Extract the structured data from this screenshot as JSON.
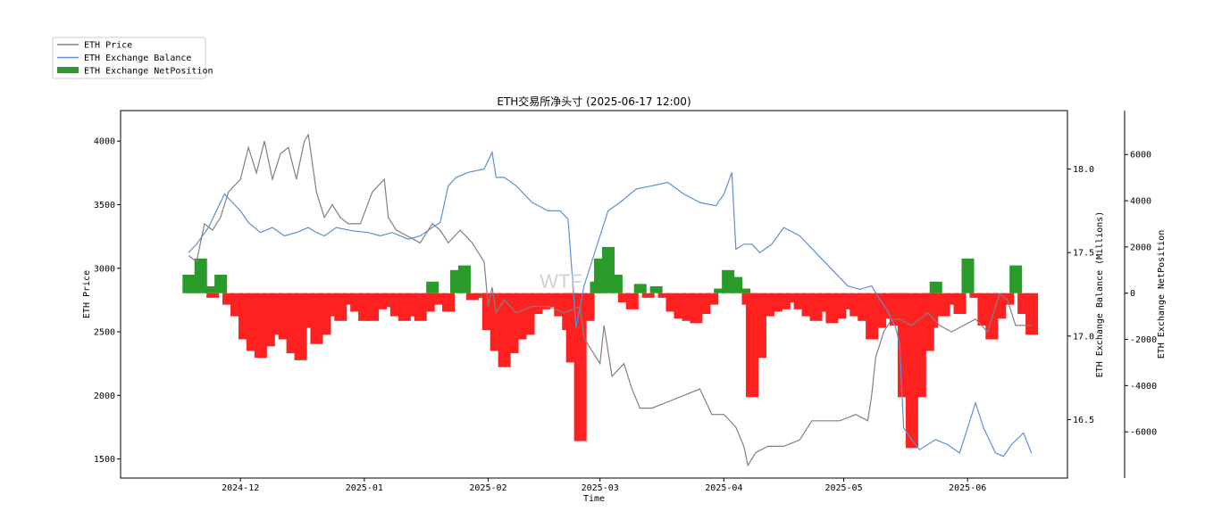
{
  "chart_data": {
    "type": "line",
    "title": "ETH交易所净头寸 (2025-06-17 12:00)",
    "xlabel": "Time",
    "watermark": "WTF",
    "x_ticks": [
      "2024-12",
      "2025-01",
      "2025-02",
      "2025-03",
      "2025-04",
      "2025-05",
      "2025-06"
    ],
    "axes": {
      "price": {
        "label": "ETH Price",
        "ylim": [
          1350,
          4240
        ],
        "ticks": [
          1500,
          2000,
          2500,
          3000,
          3500,
          4000
        ]
      },
      "balance": {
        "label": "ETH Exchange Balance (Millions)",
        "ylim": [
          16.15,
          18.35
        ],
        "ticks": [
          "16.5",
          "17.0",
          "17.5",
          "18.0"
        ]
      },
      "netposition": {
        "label": "ETH Exchange NetPosition",
        "ylim": [
          -8000,
          7900
        ],
        "ticks": [
          -6000,
          -4000,
          -2000,
          0,
          2000,
          4000,
          6000
        ]
      }
    },
    "legend": {
      "placement": "upper-left, outside plot"
    },
    "series": [
      {
        "name": "ETH Price",
        "axis": "price",
        "color": "#808080",
        "x": [
          "2024-11-18",
          "2024-11-20",
          "2024-11-22",
          "2024-11-24",
          "2024-11-26",
          "2024-11-28",
          "2024-12-01",
          "2024-12-03",
          "2024-12-05",
          "2024-12-07",
          "2024-12-09",
          "2024-12-11",
          "2024-12-13",
          "2024-12-15",
          "2024-12-17",
          "2024-12-18",
          "2024-12-20",
          "2024-12-22",
          "2024-12-24",
          "2024-12-26",
          "2024-12-28",
          "2024-12-31",
          "2025-01-03",
          "2025-01-06",
          "2025-01-07",
          "2025-01-09",
          "2025-01-12",
          "2025-01-15",
          "2025-01-18",
          "2025-01-20",
          "2025-01-22",
          "2025-01-25",
          "2025-01-28",
          "2025-01-31",
          "2025-02-01",
          "2025-02-02",
          "2025-02-03",
          "2025-02-05",
          "2025-02-08",
          "2025-02-12",
          "2025-02-16",
          "2025-02-20",
          "2025-02-24",
          "2025-02-25",
          "2025-02-27",
          "2025-03-01",
          "2025-03-02",
          "2025-03-04",
          "2025-03-07",
          "2025-03-09",
          "2025-03-11",
          "2025-03-14",
          "2025-03-18",
          "2025-03-22",
          "2025-03-26",
          "2025-03-29",
          "2025-04-01",
          "2025-04-04",
          "2025-04-06",
          "2025-04-07",
          "2025-04-09",
          "2025-04-12",
          "2025-04-16",
          "2025-04-20",
          "2025-04-23",
          "2025-04-26",
          "2025-04-30",
          "2025-05-04",
          "2025-05-07",
          "2025-05-08",
          "2025-05-09",
          "2025-05-11",
          "2025-05-13",
          "2025-05-15",
          "2025-05-18",
          "2025-05-22",
          "2025-05-25",
          "2025-05-28",
          "2025-05-31",
          "2025-06-03",
          "2025-06-06",
          "2025-06-09",
          "2025-06-11",
          "2025-06-13",
          "2025-06-15",
          "2025-06-17"
        ],
        "values": [
          3100,
          3050,
          3350,
          3300,
          3400,
          3600,
          3700,
          3950,
          3750,
          4000,
          3700,
          3900,
          3950,
          3700,
          4000,
          4050,
          3600,
          3400,
          3500,
          3400,
          3350,
          3350,
          3600,
          3700,
          3400,
          3300,
          3250,
          3200,
          3350,
          3300,
          3200,
          3300,
          3200,
          3050,
          2700,
          2850,
          2650,
          2750,
          2650,
          2700,
          2700,
          2650,
          2700,
          2450,
          2350,
          2250,
          2550,
          2150,
          2250,
          2050,
          1900,
          1900,
          1950,
          2000,
          2050,
          1850,
          1850,
          1750,
          1600,
          1450,
          1550,
          1600,
          1600,
          1650,
          1800,
          1800,
          1800,
          1850,
          1800,
          2000,
          2300,
          2500,
          2600,
          2600,
          2550,
          2650,
          2550,
          2500,
          2550,
          2600,
          2500,
          2800,
          2750,
          2550,
          2550,
          2550
        ]
      },
      {
        "name": "ETH Exchange Balance",
        "axis": "balance",
        "color": "#5b8fd8",
        "x": [
          "2024-11-18",
          "2024-11-20",
          "2024-11-23",
          "2024-11-25",
          "2024-11-27",
          "2024-11-29",
          "2024-12-01",
          "2024-12-03",
          "2024-12-06",
          "2024-12-09",
          "2024-12-12",
          "2024-12-15",
          "2024-12-18",
          "2024-12-20",
          "2024-12-22",
          "2024-12-25",
          "2024-12-29",
          "2025-01-02",
          "2025-01-05",
          "2025-01-08",
          "2025-01-12",
          "2025-01-15",
          "2025-01-18",
          "2025-01-20",
          "2025-01-22",
          "2025-01-24",
          "2025-01-27",
          "2025-01-31",
          "2025-02-02",
          "2025-02-03",
          "2025-02-05",
          "2025-02-08",
          "2025-02-12",
          "2025-02-16",
          "2025-02-19",
          "2025-02-21",
          "2025-02-23",
          "2025-02-25",
          "2025-02-27",
          "2025-03-01",
          "2025-03-03",
          "2025-03-06",
          "2025-03-10",
          "2025-03-14",
          "2025-03-18",
          "2025-03-22",
          "2025-03-26",
          "2025-03-30",
          "2025-04-01",
          "2025-04-03",
          "2025-04-04",
          "2025-04-06",
          "2025-04-08",
          "2025-04-10",
          "2025-04-13",
          "2025-04-16",
          "2025-04-20",
          "2025-04-24",
          "2025-04-28",
          "2025-05-02",
          "2025-05-05",
          "2025-05-08",
          "2025-05-10",
          "2025-05-12",
          "2025-05-14",
          "2025-05-15",
          "2025-05-16",
          "2025-05-18",
          "2025-05-20",
          "2025-05-24",
          "2025-05-27",
          "2025-05-30",
          "2025-06-01",
          "2025-06-03",
          "2025-06-05",
          "2025-06-08",
          "2025-06-10",
          "2025-06-12",
          "2025-06-15",
          "2025-06-17"
        ],
        "values": [
          17.5,
          17.55,
          17.65,
          17.75,
          17.85,
          17.8,
          17.75,
          17.68,
          17.62,
          17.65,
          17.6,
          17.62,
          17.65,
          17.62,
          17.6,
          17.65,
          17.63,
          17.62,
          17.6,
          17.62,
          17.58,
          17.6,
          17.65,
          17.68,
          17.9,
          17.95,
          17.98,
          18.0,
          18.1,
          17.95,
          17.95,
          17.9,
          17.8,
          17.75,
          17.75,
          17.7,
          17.05,
          17.3,
          17.45,
          17.6,
          17.75,
          17.8,
          17.88,
          17.9,
          17.92,
          17.85,
          17.8,
          17.78,
          17.85,
          17.98,
          17.52,
          17.55,
          17.55,
          17.5,
          17.55,
          17.65,
          17.6,
          17.5,
          17.4,
          17.3,
          17.28,
          17.3,
          17.22,
          17.15,
          17.05,
          16.95,
          16.45,
          16.38,
          16.32,
          16.38,
          16.35,
          16.3,
          16.45,
          16.6,
          16.45,
          16.3,
          16.28,
          16.35,
          16.42,
          16.3
        ]
      },
      {
        "name": "ETH Exchange NetPosition",
        "axis": "netposition",
        "type": "bar",
        "positive_color": "#2a9a2a",
        "negative_color": "#ff2020",
        "x": [
          "2024-11-18",
          "2024-11-19",
          "2024-11-21",
          "2024-11-23",
          "2024-11-24",
          "2024-11-26",
          "2024-11-28",
          "2024-11-30",
          "2024-12-02",
          "2024-12-04",
          "2024-12-06",
          "2024-12-08",
          "2024-12-10",
          "2024-12-12",
          "2024-12-14",
          "2024-12-16",
          "2024-12-18",
          "2024-12-20",
          "2024-12-22",
          "2024-12-24",
          "2024-12-26",
          "2024-12-28",
          "2024-12-30",
          "2025-01-01",
          "2025-01-03",
          "2025-01-05",
          "2025-01-07",
          "2025-01-09",
          "2025-01-11",
          "2025-01-13",
          "2025-01-15",
          "2025-01-17",
          "2025-01-18",
          "2025-01-20",
          "2025-01-22",
          "2025-01-24",
          "2025-01-26",
          "2025-01-28",
          "2025-01-30",
          "2025-02-01",
          "2025-02-03",
          "2025-02-05",
          "2025-02-07",
          "2025-02-09",
          "2025-02-11",
          "2025-02-13",
          "2025-02-15",
          "2025-02-17",
          "2025-02-19",
          "2025-02-21",
          "2025-02-22",
          "2025-02-24",
          "2025-02-26",
          "2025-02-28",
          "2025-03-01",
          "2025-03-03",
          "2025-03-05",
          "2025-03-07",
          "2025-03-09",
          "2025-03-11",
          "2025-03-13",
          "2025-03-15",
          "2025-03-17",
          "2025-03-19",
          "2025-03-21",
          "2025-03-23",
          "2025-03-25",
          "2025-03-27",
          "2025-03-29",
          "2025-03-31",
          "2025-04-02",
          "2025-04-04",
          "2025-04-06",
          "2025-04-07",
          "2025-04-08",
          "2025-04-10",
          "2025-04-12",
          "2025-04-14",
          "2025-04-16",
          "2025-04-18",
          "2025-04-20",
          "2025-04-22",
          "2025-04-24",
          "2025-04-26",
          "2025-04-28",
          "2025-04-30",
          "2025-05-02",
          "2025-05-04",
          "2025-05-06",
          "2025-05-08",
          "2025-05-10",
          "2025-05-12",
          "2025-05-14",
          "2025-05-15",
          "2025-05-16",
          "2025-05-18",
          "2025-05-20",
          "2025-05-22",
          "2025-05-23",
          "2025-05-24",
          "2025-05-26",
          "2025-05-28",
          "2025-05-30",
          "2025-06-01",
          "2025-06-03",
          "2025-06-05",
          "2025-06-07",
          "2025-06-09",
          "2025-06-11",
          "2025-06-13",
          "2025-06-15",
          "2025-06-17"
        ],
        "values": [
          800,
          200,
          1500,
          300,
          -200,
          800,
          -500,
          -1000,
          -2000,
          -2500,
          -2800,
          -2300,
          -1800,
          -2000,
          -2600,
          -2900,
          -1500,
          -2200,
          -1800,
          -1000,
          -1200,
          -500,
          -800,
          -1200,
          -1200,
          -700,
          -600,
          -1000,
          -1200,
          -1000,
          -1200,
          -800,
          500,
          -500,
          -800,
          1000,
          1200,
          -300,
          -200,
          -1600,
          -2500,
          -3200,
          -2600,
          -2000,
          -1800,
          -900,
          -700,
          -600,
          -1000,
          -1600,
          -3000,
          -6400,
          -1200,
          500,
          1500,
          2000,
          800,
          -400,
          -700,
          400,
          -200,
          300,
          -200,
          -800,
          -1100,
          -1200,
          -1300,
          -900,
          -500,
          200,
          1000,
          700,
          200,
          -500,
          -4500,
          -2800,
          -1000,
          -800,
          -700,
          -400,
          -700,
          -1000,
          -1200,
          -800,
          -1300,
          -1100,
          -700,
          -1000,
          -1200,
          -2000,
          -1500,
          -1100,
          -1400,
          -1300,
          -4500,
          -6700,
          -4500,
          -2500,
          -1500,
          500,
          -1000,
          -500,
          -900,
          1500,
          -200,
          -1400,
          -2000,
          -1100,
          -500,
          1200,
          -900,
          -1800
        ]
      }
    ]
  }
}
